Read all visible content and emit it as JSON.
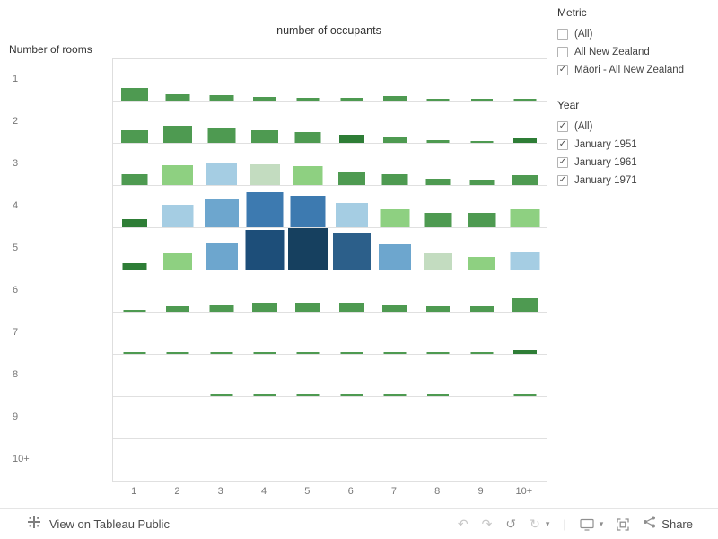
{
  "chart_data": {
    "type": "heatmap",
    "title": "number of occupants",
    "x_label": "number of occupants",
    "y_label": "Number of rooms",
    "columns": [
      "1",
      "2",
      "3",
      "4",
      "5",
      "6",
      "7",
      "8",
      "9",
      "10+"
    ],
    "rows": [
      "1",
      "2",
      "3",
      "4",
      "5",
      "6",
      "7",
      "8",
      "9",
      "10+"
    ],
    "palette": {
      "g": "#4e9a51",
      "dg": "#2e7d36",
      "lg": "#8ed081",
      "pg": "#c3dcc0",
      "lb": "#a5cde3",
      "mb": "#6da6ce",
      "b": "#3d7ab0",
      "db": "#2c5f8a",
      "nv": "#1d4e79",
      "nv2": "#16405f"
    },
    "cells": [
      [
        [
          0.3,
          "g"
        ],
        [
          0.15,
          "g"
        ],
        [
          0.13,
          "g"
        ],
        [
          0.08,
          "g"
        ],
        [
          0.06,
          "g"
        ],
        [
          0.06,
          "g"
        ],
        [
          0.1,
          "g"
        ],
        [
          0.04,
          "g"
        ],
        [
          0.02,
          "g"
        ],
        [
          0.05,
          "g"
        ]
      ],
      [
        [
          0.3,
          "g"
        ],
        [
          0.42,
          "g"
        ],
        [
          0.37,
          "g"
        ],
        [
          0.31,
          "g"
        ],
        [
          0.26,
          "g"
        ],
        [
          0.2,
          "dg"
        ],
        [
          0.12,
          "g"
        ],
        [
          0.06,
          "g"
        ],
        [
          0.04,
          "g"
        ],
        [
          0.1,
          "dg"
        ]
      ],
      [
        [
          0.26,
          "g"
        ],
        [
          0.48,
          "lg"
        ],
        [
          0.52,
          "lb"
        ],
        [
          0.5,
          "pg"
        ],
        [
          0.45,
          "lg"
        ],
        [
          0.3,
          "g"
        ],
        [
          0.26,
          "g"
        ],
        [
          0.16,
          "g"
        ],
        [
          0.14,
          "g"
        ],
        [
          0.24,
          "g"
        ]
      ],
      [
        [
          0.2,
          "dg"
        ],
        [
          0.55,
          "lb"
        ],
        [
          0.68,
          "mb"
        ],
        [
          0.85,
          "b"
        ],
        [
          0.76,
          "b"
        ],
        [
          0.58,
          "lb"
        ],
        [
          0.44,
          "lg"
        ],
        [
          0.34,
          "g"
        ],
        [
          0.34,
          "g"
        ],
        [
          0.44,
          "lg"
        ]
      ],
      [
        [
          0.16,
          "dg"
        ],
        [
          0.4,
          "lg"
        ],
        [
          0.62,
          "mb"
        ],
        [
          0.95,
          "nv"
        ],
        [
          1.0,
          "nv2"
        ],
        [
          0.9,
          "db"
        ],
        [
          0.6,
          "mb"
        ],
        [
          0.4,
          "pg"
        ],
        [
          0.3,
          "lg"
        ],
        [
          0.44,
          "lb"
        ]
      ],
      [
        [
          0.04,
          "g"
        ],
        [
          0.12,
          "g"
        ],
        [
          0.16,
          "g"
        ],
        [
          0.22,
          "g"
        ],
        [
          0.22,
          "g"
        ],
        [
          0.22,
          "g"
        ],
        [
          0.18,
          "g"
        ],
        [
          0.12,
          "g"
        ],
        [
          0.12,
          "g"
        ],
        [
          0.32,
          "g"
        ]
      ],
      [
        [
          0.03,
          "g"
        ],
        [
          0.04,
          "g"
        ],
        [
          0.04,
          "g"
        ],
        [
          0.05,
          "g"
        ],
        [
          0.05,
          "g"
        ],
        [
          0.05,
          "g"
        ],
        [
          0.04,
          "g"
        ],
        [
          0.04,
          "g"
        ],
        [
          0.03,
          "g"
        ],
        [
          0.08,
          "dg"
        ]
      ],
      [
        null,
        null,
        [
          0.03,
          "g"
        ],
        [
          0.03,
          "g"
        ],
        [
          0.03,
          "g"
        ],
        [
          0.03,
          "g"
        ],
        [
          0.03,
          "g"
        ],
        [
          0.02,
          "g"
        ],
        null,
        [
          0.03,
          "g"
        ]
      ],
      [
        null,
        null,
        null,
        null,
        null,
        null,
        null,
        null,
        null,
        null
      ],
      [
        null,
        null,
        null,
        null,
        null,
        null,
        null,
        null,
        null,
        null
      ]
    ]
  },
  "filters": {
    "metric": {
      "title": "Metric",
      "options": [
        {
          "label": "(All)",
          "checked": false
        },
        {
          "label": "All New Zealand",
          "checked": false
        },
        {
          "label": "Māori - All New Zealand",
          "checked": true
        }
      ]
    },
    "year": {
      "title": "Year",
      "options": [
        {
          "label": "(All)",
          "checked": true
        },
        {
          "label": "January 1951",
          "checked": true
        },
        {
          "label": "January 1961",
          "checked": true
        },
        {
          "label": "January 1971",
          "checked": true
        }
      ]
    }
  },
  "toolbar": {
    "view_label": "View on Tableau Public",
    "share_label": "Share",
    "glyphs": {
      "undo": "↶",
      "redo": "↷",
      "replay": "↺",
      "forward": "↻",
      "caret": "▾",
      "separator": "|"
    }
  },
  "ui": {
    "check_glyph": "✓"
  }
}
